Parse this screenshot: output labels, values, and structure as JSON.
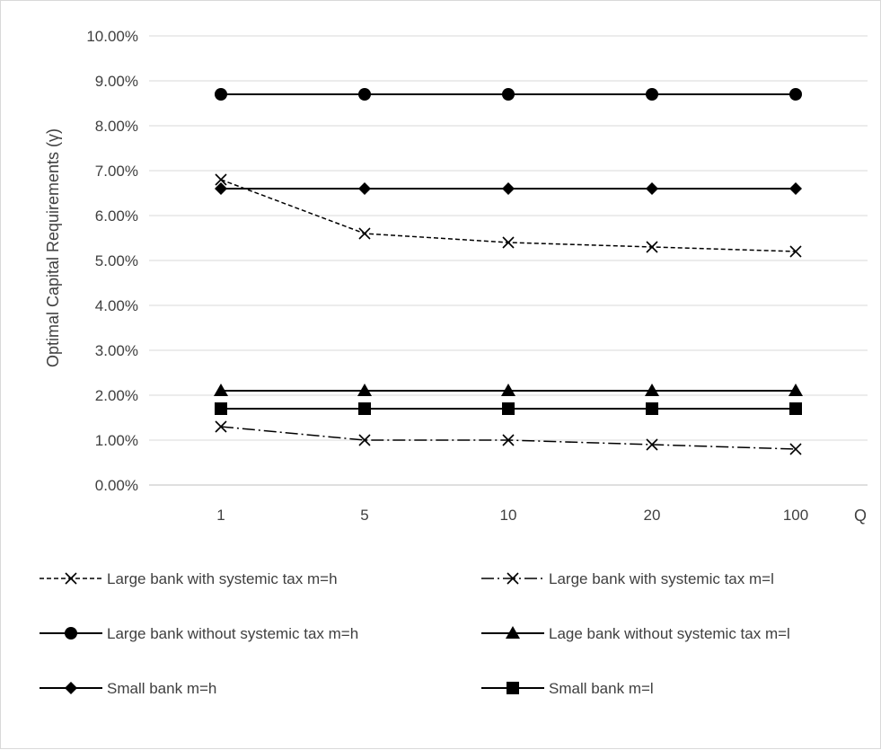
{
  "chart_data": {
    "type": "line",
    "title": "",
    "xlabel": "Q",
    "ylabel": "Optimal Capital Requirements (γ)",
    "categories": [
      "1",
      "5",
      "10",
      "20",
      "100"
    ],
    "ylim": [
      0,
      0.1
    ],
    "yticks": [
      "0.00%",
      "1.00%",
      "2.00%",
      "3.00%",
      "4.00%",
      "5.00%",
      "6.00%",
      "7.00%",
      "8.00%",
      "9.00%",
      "10.00%"
    ],
    "grid": true,
    "legend_position": "bottom",
    "series": [
      {
        "name": "Large bank with systemic tax  m=h",
        "values": [
          0.068,
          0.056,
          0.054,
          0.053,
          0.052
        ],
        "marker": "x",
        "dash": "dashed"
      },
      {
        "name": "Large bank with systemic tax m=l",
        "values": [
          0.013,
          0.01,
          0.01,
          0.009,
          0.008
        ],
        "marker": "x",
        "dash": "dashdot"
      },
      {
        "name": "Large bank without systemic tax m=h",
        "values": [
          0.087,
          0.087,
          0.087,
          0.087,
          0.087
        ],
        "marker": "circle",
        "dash": "solid"
      },
      {
        "name": "Lage bank without systemic tax m=l",
        "values": [
          0.021,
          0.021,
          0.021,
          0.021,
          0.021
        ],
        "marker": "triangle",
        "dash": "solid"
      },
      {
        "name": "Small bank m=h",
        "values": [
          0.066,
          0.066,
          0.066,
          0.066,
          0.066
        ],
        "marker": "diamond",
        "dash": "solid"
      },
      {
        "name": "Small bank m=l",
        "values": [
          0.017,
          0.017,
          0.017,
          0.017,
          0.017
        ],
        "marker": "square",
        "dash": "solid"
      }
    ],
    "colors": {
      "line": "#000000",
      "grid": "#d9d9d9",
      "text": "#404040"
    }
  }
}
